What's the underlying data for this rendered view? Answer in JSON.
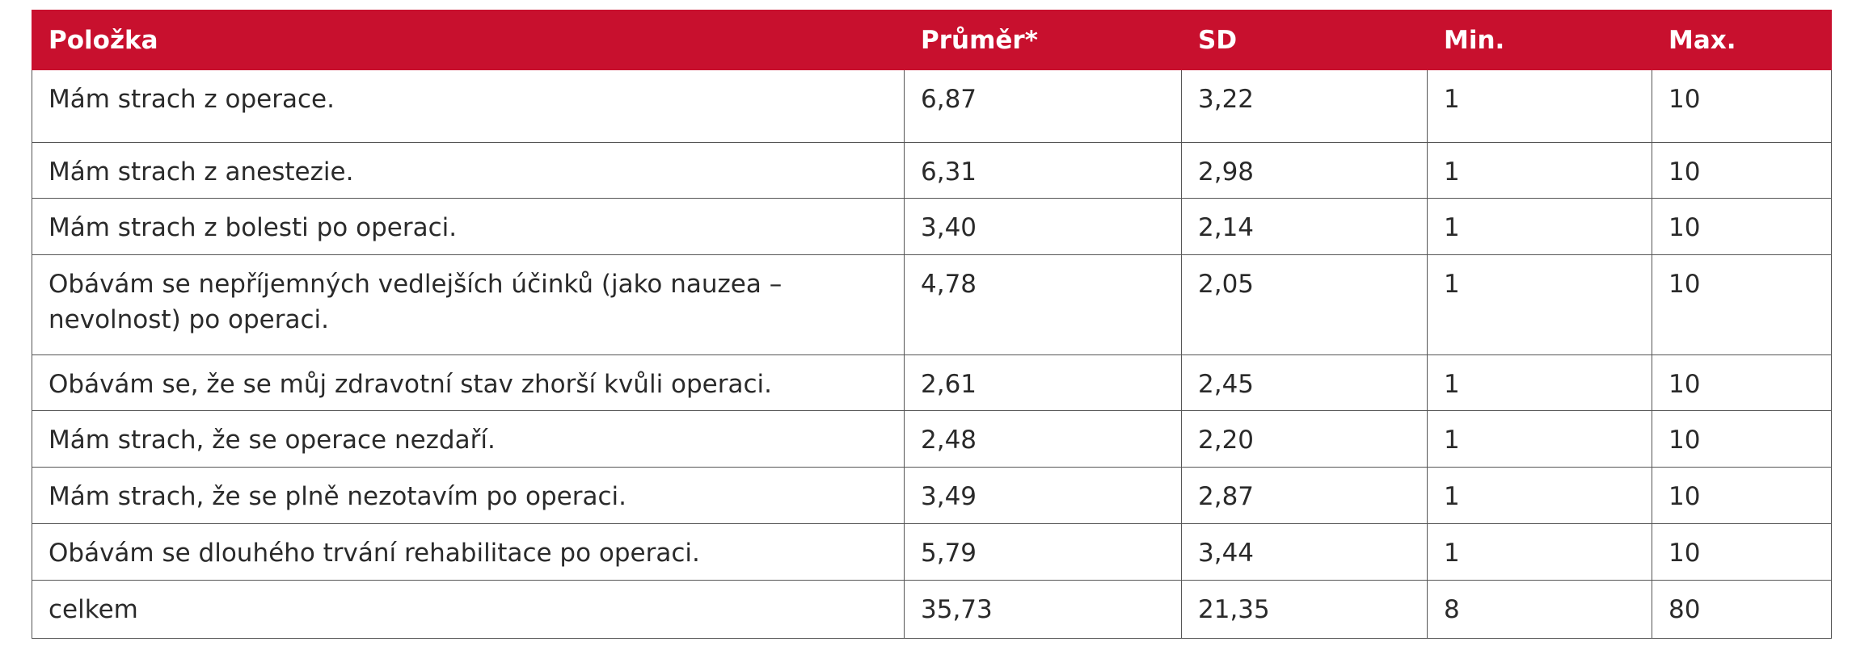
{
  "table": {
    "header": [
      "Položka",
      "Průměr*",
      "SD",
      "Min.",
      "Max."
    ],
    "rows": [
      [
        "Mám strach z operace.",
        "6,87",
        "3,22",
        "1",
        "10"
      ],
      [
        "Mám strach z anestezie.",
        "6,31",
        "2,98",
        "1",
        "10"
      ],
      [
        "Mám strach z bolesti po operaci.",
        "3,40",
        "2,14",
        "1",
        "10"
      ],
      [
        "Obávám se nepříjemných vedlejších účinků (jako nauzea – nevolnost) po operaci.",
        "4,78",
        "2,05",
        "1",
        "10"
      ],
      [
        "Obávám se, že se můj zdravotní stav zhorší kvůli operaci.",
        "2,61",
        "2,45",
        "1",
        "10"
      ],
      [
        "Mám strach, že se operace nezdaří.",
        "2,48",
        "2,20",
        "1",
        "10"
      ],
      [
        "Mám strach, že se plně nezotavím po operaci.",
        "3,49",
        "2,87",
        "1",
        "10"
      ],
      [
        "Obávám se dlouhého trvání rehabilitace po operaci.",
        "5,79",
        "3,44",
        "1",
        "10"
      ],
      [
        "celkem",
        "35,73",
        "21,35",
        "8",
        "80"
      ]
    ]
  }
}
